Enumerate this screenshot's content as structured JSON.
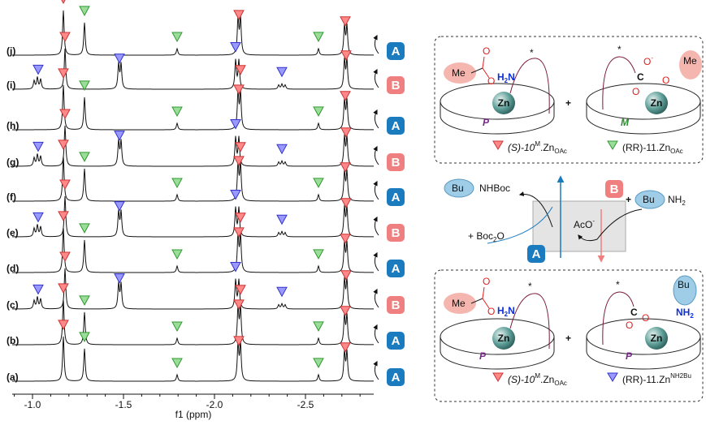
{
  "spectra": {
    "axis_label": "f1 (ppm)",
    "ticks": [
      "-1.0",
      "-1.5",
      "-2.0",
      "-2.5"
    ],
    "traces": [
      {
        "label": "(j)",
        "state": "A"
      },
      {
        "label": "(i)",
        "state": "B"
      },
      {
        "label": "(h)",
        "state": "A"
      },
      {
        "label": "(g)",
        "state": "B"
      },
      {
        "label": "(f)",
        "state": "A"
      },
      {
        "label": "(e)",
        "state": "B"
      },
      {
        "label": "(d)",
        "state": "A"
      },
      {
        "label": "(c)",
        "state": "B"
      },
      {
        "label": "(b)",
        "state": "A"
      },
      {
        "label": "(a)",
        "state": "A"
      }
    ]
  },
  "scheme": {
    "top": {
      "me_left": "Me",
      "o1": "O",
      "o2": "O",
      "h2n": [
        "H",
        "2",
        "N"
      ],
      "zn_left": "Zn",
      "p": "P",
      "star_left": "*",
      "plus": "+",
      "star_right": "*",
      "c": "C",
      "o3": [
        "O",
        "-"
      ],
      "o4": "O",
      "o5": "O",
      "me_right": "Me",
      "zn_right": "Zn",
      "m": "M",
      "caption_left": [
        "(S)-10",
        "M",
        ".Zn",
        "OAc"
      ],
      "caption_right": [
        "(RR)-11.Zn",
        "OAc"
      ]
    },
    "cycle": {
      "bu_left": "Bu",
      "nhboc": "NHBoc",
      "b": "B",
      "plus": "+",
      "bu_right": "Bu",
      "nh2": [
        "NH",
        "2"
      ],
      "boc2o": [
        "+ Boc",
        "2",
        "O"
      ],
      "aco": [
        "AcO",
        "-"
      ],
      "a": "A"
    },
    "bottom": {
      "me": "Me",
      "o1": "O",
      "o2": "O",
      "h2n": [
        "H",
        "2",
        "N"
      ],
      "zn_left": "Zn",
      "p_left": "P",
      "star_left": "*",
      "plus": "+",
      "star_right": "*",
      "c": "C",
      "o3": "O",
      "o4": "O",
      "bu": "Bu",
      "nh2": [
        "NH",
        "2"
      ],
      "zn_right": "Zn",
      "p_right": "P",
      "caption_left": [
        "(S)-10",
        "M",
        ".Zn",
        "OAc"
      ],
      "caption_right": [
        "(RR)-11.Zn",
        "NH2Bu"
      ]
    }
  }
}
